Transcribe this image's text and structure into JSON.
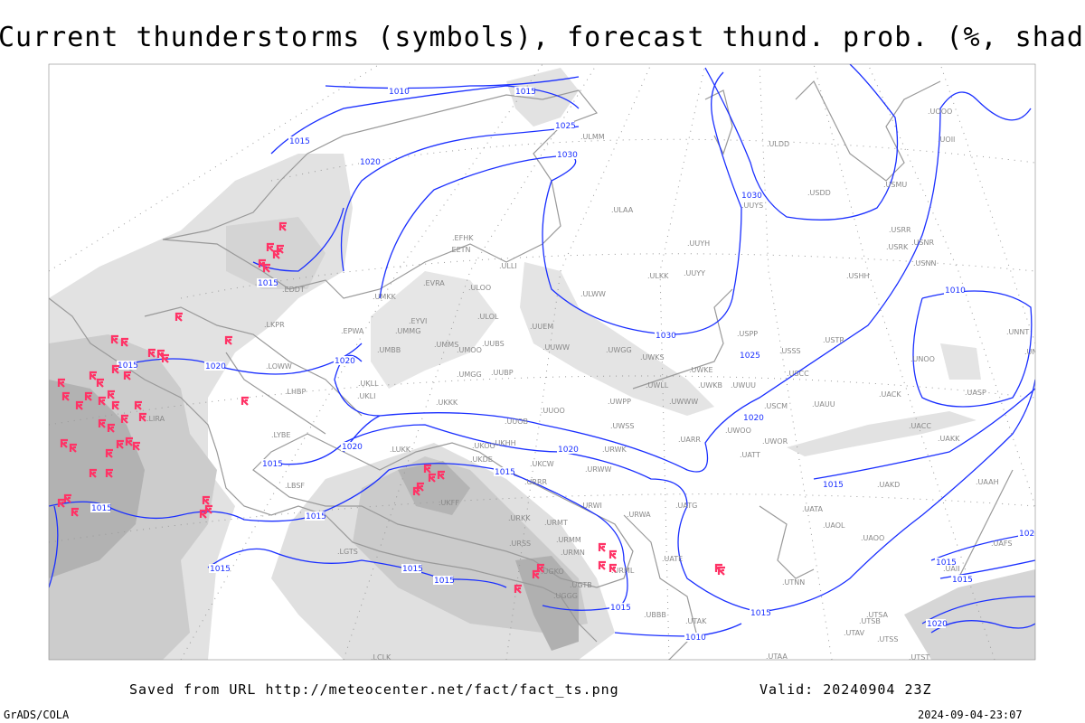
{
  "title": "Current thunderstorms (symbols), forecast thund. prob. (%, shaded)",
  "footer": {
    "saved_from": "Saved from URL http://meteocenter.net/fact/fact_ts.png",
    "valid": "Valid: 20240904 23Z",
    "software": "GrADS/COLA",
    "timestamp": "2024-09-04-23:07"
  },
  "colors": {
    "isobar": "#1a2fff",
    "thunderstorm_symbol": "#ff3366",
    "coastline": "#999999",
    "shading_light": "#e4e4e4",
    "shading_mid": "#cfcfcf",
    "shading_dark": "#b0b0b0"
  },
  "isobar_labels": [
    "1010",
    "1015",
    "1025",
    "1030",
    "1015",
    "1020",
    "1030",
    "1010",
    "1030",
    "1025",
    "1020",
    "1015",
    "1015",
    "1020",
    "1020",
    "1020",
    "1020",
    "1015",
    "1015",
    "1015",
    "1015",
    "1015",
    "1015",
    "1015",
    "1015",
    "1015",
    "1010",
    "1015",
    "1015",
    "1020",
    "1020",
    "1015"
  ],
  "stations": [
    "ULMM",
    "ULLI",
    "EFHK",
    "EETN",
    "EVRA",
    "ULOO",
    "UMKK",
    "EYVI",
    "ULOL",
    "EPWA",
    "UMMG",
    "UMBB",
    "UMMS",
    "UMOO",
    "UUBS",
    "UUEM",
    "UUWW",
    "UMGG",
    "UUBP",
    "UKLL",
    "UKLI",
    "UKKK",
    "UUOO",
    "UUOB",
    "UKHH",
    "UKOO",
    "UKCW",
    "UKDE",
    "LUKK",
    "UWPP",
    "UWSS",
    "URWK",
    "URWW",
    "UARR",
    "UWGG",
    "UWKS",
    "UWKE",
    "UWLL",
    "UWKB",
    "UWWW",
    "UWUU",
    "ULKK",
    "UUYY",
    "ULWW",
    "UUYH",
    "ULAA",
    "UUYS",
    "ULDD",
    "USDD",
    "USMU",
    "USRR",
    "USRK",
    "USNR",
    "USNN",
    "USHH",
    "USPP",
    "USSS",
    "USTR",
    "USCC",
    "UACK",
    "USCM",
    "UAUU",
    "UWOO",
    "UWOR",
    "UATT",
    "UACC",
    "UAKK",
    "UAKD",
    "UATA",
    "UAOL",
    "UAOO",
    "UATG",
    "URWA",
    "URWI",
    "URMT",
    "URMM",
    "URMN",
    "URML",
    "UATE",
    "UGKO",
    "UGTB",
    "UGGG",
    "UBBB",
    "UTAK",
    "UTAA",
    "UTNN",
    "UTSA",
    "UTSB",
    "UTAV",
    "UTSS",
    "UTST",
    "UAII",
    "LIRA",
    "LYBE",
    "LBSF",
    "LGTS",
    "LOWW",
    "LHBP",
    "LKPR",
    "EDDT",
    "LCLK",
    "UKFF",
    "URKK",
    "URSS",
    "URRR",
    "UOOO",
    "UOII",
    "UNNT",
    "UNBB",
    "UNOO",
    "UASP",
    "UAAH",
    "UAFS"
  ],
  "thunderstorm_count_symbol": "thunderstorm-symbol"
}
